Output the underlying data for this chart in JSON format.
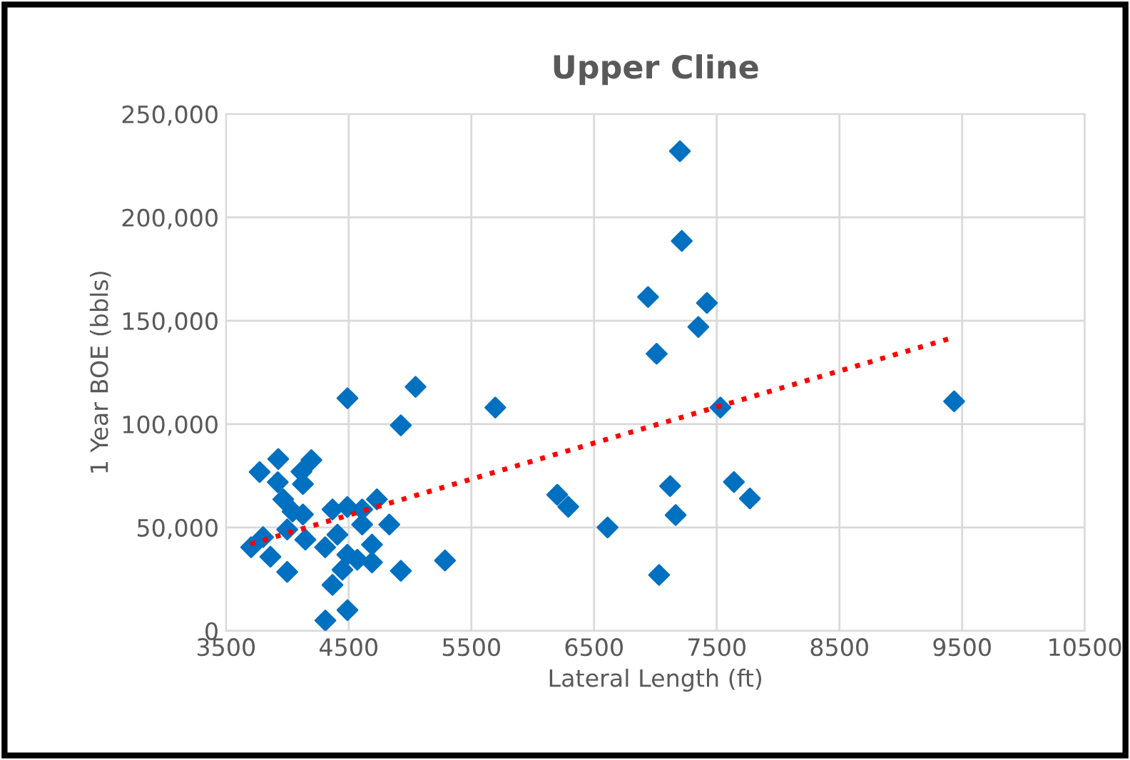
{
  "chart_data": {
    "type": "scatter",
    "title": "Upper Cline",
    "xlabel": "Lateral Length (ft)",
    "ylabel": "1 Year BOE (bbls)",
    "xlim": [
      3500,
      10500
    ],
    "xticks": [
      3500,
      4500,
      5500,
      6500,
      7500,
      8500,
      9500,
      10500
    ],
    "ylim": [
      0,
      250000
    ],
    "yticks": [
      {
        "value": 0,
        "label": "0"
      },
      {
        "value": 50000,
        "label": "50,000"
      },
      {
        "value": 100000,
        "label": "100,000"
      },
      {
        "value": 150000,
        "label": "150,000"
      },
      {
        "value": 200000,
        "label": "200,000"
      },
      {
        "value": 250000,
        "label": "250,000"
      }
    ],
    "grid": true,
    "legend": false,
    "series": [
      {
        "color": "#0070c0",
        "marker": "diamond",
        "x": [
          7200,
          7215,
          6940,
          7420,
          7350,
          7010,
          7530,
          9435,
          7640,
          7770,
          7120,
          7165,
          7030,
          6610,
          6200,
          6290,
          5695,
          5045,
          4925,
          5285,
          4925,
          4490,
          4490,
          4310,
          3774,
          3926,
          4196,
          4115,
          3922,
          4127,
          3967,
          4043,
          4127,
          3999,
          3802,
          3705,
          3862,
          3999,
          4147,
          4368,
          4489,
          4610,
          4730,
          4610,
          4831,
          4308,
          4408,
          4489,
          4690,
          4690,
          4570,
          4449,
          4368
        ],
        "values": [
          232000,
          188600,
          161500,
          158600,
          147000,
          134000,
          108000,
          111000,
          72000,
          64000,
          70000,
          56000,
          27000,
          50000,
          65800,
          60000,
          108000,
          118000,
          99400,
          34000,
          29000,
          112500,
          10000,
          5000,
          76800,
          83100,
          82600,
          77000,
          71900,
          71000,
          63600,
          57700,
          56300,
          49000,
          45300,
          40400,
          35800,
          28500,
          44100,
          58700,
          59900,
          58700,
          63600,
          51400,
          51400,
          40400,
          46500,
          36800,
          41700,
          33100,
          34400,
          29500,
          22200
        ]
      },
      {
        "type": "line",
        "color": "#ff0000",
        "line_style": "dotted",
        "marker": "none",
        "x": [
          3700,
          9435
        ],
        "values": [
          42000,
          142000
        ]
      }
    ]
  }
}
